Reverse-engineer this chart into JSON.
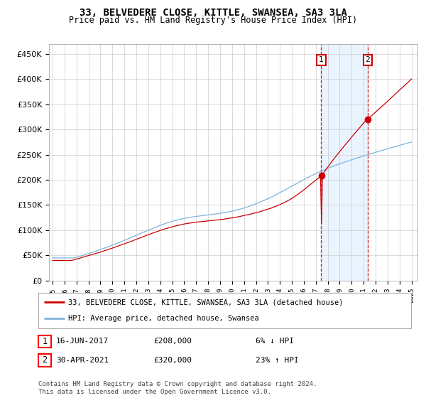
{
  "title": "33, BELVEDERE CLOSE, KITTLE, SWANSEA, SA3 3LA",
  "subtitle": "Price paid vs. HM Land Registry's House Price Index (HPI)",
  "ylim": [
    0,
    470000
  ],
  "yticks": [
    0,
    50000,
    100000,
    150000,
    200000,
    250000,
    300000,
    350000,
    400000,
    450000
  ],
  "year_start": 1995,
  "year_end": 2025,
  "hpi_color": "#7fb3d9",
  "price_color": "#cc0000",
  "sale1_year": 2017.45,
  "sale1_price": 208000,
  "sale2_year": 2021.33,
  "sale2_price": 320000,
  "sale1_date": "16-JUN-2017",
  "sale1_price_str": "£208,000",
  "sale1_note": "6% ↓ HPI",
  "sale2_date": "30-APR-2021",
  "sale2_price_str": "£320,000",
  "sale2_note": "23% ↑ HPI",
  "legend_line1": "33, BELVEDERE CLOSE, KITTLE, SWANSEA, SA3 3LA (detached house)",
  "legend_line2": "HPI: Average price, detached house, Swansea",
  "footer": "Contains HM Land Registry data © Crown copyright and database right 2024.\nThis data is licensed under the Open Government Licence v3.0.",
  "background_color": "#ffffff",
  "grid_color": "#cccccc",
  "shade_color": "#ddeeff"
}
